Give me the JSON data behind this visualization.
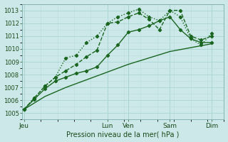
{
  "xlabel": "Pression niveau de la mer( hPa )",
  "ylim": [
    1004.5,
    1013.5
  ],
  "xlim": [
    -0.1,
    9.6
  ],
  "yticks": [
    1005,
    1006,
    1007,
    1008,
    1009,
    1010,
    1011,
    1012,
    1013
  ],
  "bg_color": "#cce8e8",
  "grid_major_color": "#aad4d4",
  "grid_minor_color": "#bbdddd",
  "line_color": "#1a6620",
  "xtick_labels": [
    "Jeu",
    "Lun",
    "Ven",
    "Sam",
    "Dim"
  ],
  "xtick_pos": [
    0,
    4,
    5,
    7,
    9
  ],
  "line1_x": [
    0,
    0.5,
    1.0,
    1.5,
    2.0,
    2.5,
    3.0,
    3.5,
    4.0,
    4.5,
    5.0,
    5.5,
    6.0,
    6.5,
    7.0,
    7.5,
    8.0,
    8.5,
    9.0
  ],
  "line1_y": [
    1005.3,
    1006.1,
    1006.9,
    1007.5,
    1007.8,
    1008.1,
    1008.3,
    1008.6,
    1009.5,
    1010.3,
    1011.3,
    1011.5,
    1011.8,
    1012.2,
    1012.5,
    1011.5,
    1010.8,
    1010.5,
    1010.5
  ],
  "line2_x": [
    0,
    0.5,
    1.0,
    1.5,
    2.0,
    2.5,
    3.0,
    3.5,
    4.0,
    4.5,
    5.0,
    5.5,
    6.0,
    6.5,
    7.0,
    7.5,
    8.0,
    8.5,
    9.0
  ],
  "line2_y": [
    1005.3,
    1006.2,
    1007.1,
    1007.8,
    1009.3,
    1009.5,
    1010.5,
    1011.0,
    1012.0,
    1012.5,
    1012.8,
    1013.1,
    1012.5,
    1012.2,
    1013.0,
    1012.5,
    1010.8,
    1010.3,
    1011.2
  ],
  "line3_x": [
    0,
    0.5,
    1.0,
    1.5,
    2.0,
    2.5,
    3.0,
    3.5,
    4.0,
    4.5,
    5.0,
    5.5,
    6.0,
    6.5,
    7.0,
    7.5,
    8.0,
    8.5,
    9.0
  ],
  "line3_y": [
    1005.3,
    1006.2,
    1007.1,
    1007.8,
    1008.3,
    1008.8,
    1009.4,
    1009.9,
    1012.0,
    1012.1,
    1012.5,
    1012.8,
    1012.3,
    1011.5,
    1013.0,
    1013.0,
    1011.0,
    1010.7,
    1011.0
  ],
  "line4_x": [
    0,
    1.0,
    2.0,
    3.0,
    4.0,
    5.0,
    6.0,
    7.0,
    8.0,
    9.0
  ],
  "line4_y": [
    1005.3,
    1006.3,
    1007.0,
    1007.6,
    1008.2,
    1008.8,
    1009.3,
    1009.8,
    1010.1,
    1010.4
  ]
}
